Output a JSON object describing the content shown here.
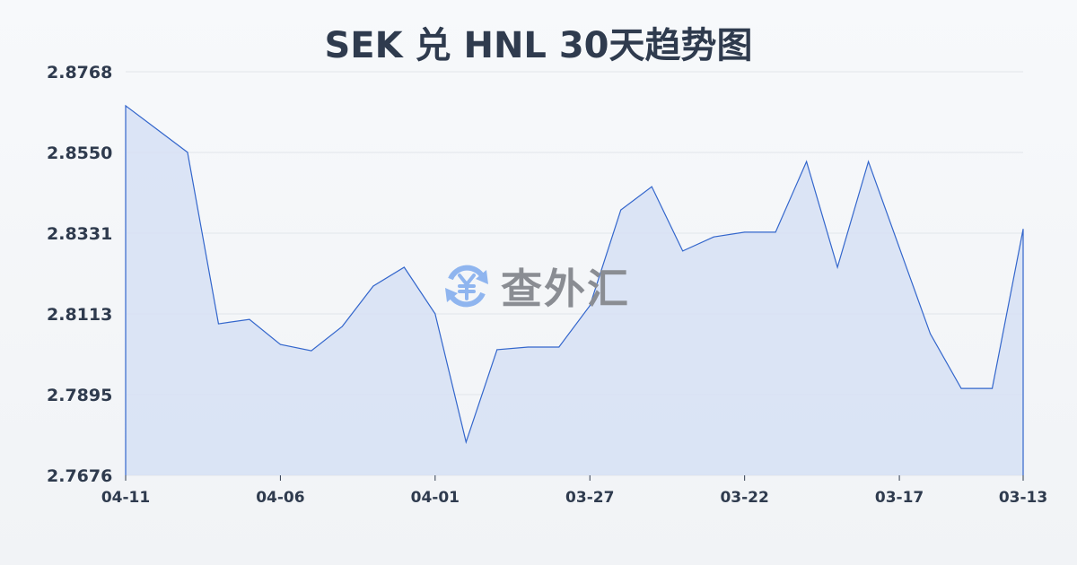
{
  "chart_data": {
    "type": "area",
    "title": "SEK 兑 HNL 30天趋势图",
    "xlabel": "",
    "ylabel": "",
    "ylim": [
      2.7676,
      2.8768
    ],
    "y_ticks": [
      "2.8768",
      "2.8550",
      "2.8331",
      "2.8113",
      "2.7895",
      "2.7676"
    ],
    "x_ticks": [
      "04-11",
      "04-06",
      "04-01",
      "03-27",
      "03-22",
      "03-17",
      "03-13"
    ],
    "grid": true,
    "color": "#3366cc",
    "fill_color": "#d6e0f5",
    "values": [
      2.8676,
      2.8613,
      2.855,
      2.8086,
      2.8098,
      2.803,
      2.8013,
      2.8079,
      2.8188,
      2.8239,
      2.8113,
      2.7766,
      2.8016,
      2.8023,
      2.8023,
      2.8135,
      2.8394,
      2.8457,
      2.8283,
      2.8321,
      2.8334,
      2.8334,
      2.8525,
      2.8239,
      2.8525,
      2.8292,
      2.8059,
      2.7911,
      2.7911,
      2.8342
    ]
  },
  "watermark": {
    "text": "查外汇",
    "icon": "yen-exchange-icon"
  }
}
